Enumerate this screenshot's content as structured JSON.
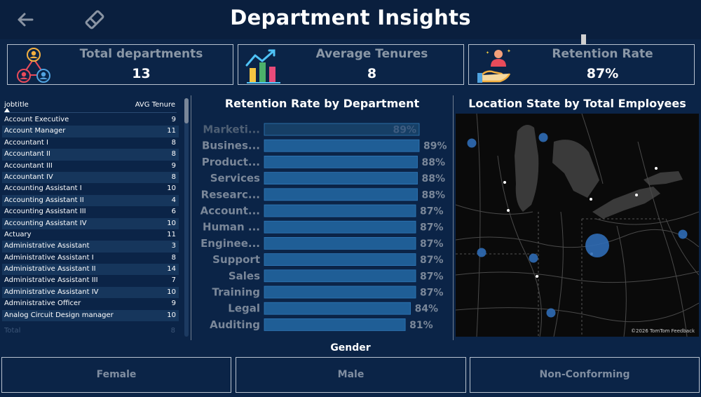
{
  "header": {
    "title": "Department Insights",
    "back_icon": "back-arrow-icon",
    "eraser_icon": "eraser-icon"
  },
  "kpis": [
    {
      "label": "Total departments",
      "value": "13",
      "icon": "org-chart-icon"
    },
    {
      "label": "Average Tenures",
      "value": "8",
      "icon": "bar-chart-growth-icon"
    },
    {
      "label": "Retention Rate",
      "value": "87%",
      "icon": "hand-person-icon"
    }
  ],
  "job_table": {
    "columns": [
      "jobtitle",
      "AVG Tenure"
    ],
    "rows": [
      {
        "job": "Account Executive",
        "avg": "9"
      },
      {
        "job": "Account Manager",
        "avg": "11"
      },
      {
        "job": "Accountant I",
        "avg": "8"
      },
      {
        "job": "Accountant II",
        "avg": "8"
      },
      {
        "job": "Accountant III",
        "avg": "9"
      },
      {
        "job": "Accountant IV",
        "avg": "8"
      },
      {
        "job": "Accounting Assistant I",
        "avg": "10"
      },
      {
        "job": "Accounting Assistant II",
        "avg": "4"
      },
      {
        "job": "Accounting Assistant III",
        "avg": "6"
      },
      {
        "job": "Accounting Assistant IV",
        "avg": "10"
      },
      {
        "job": "Actuary",
        "avg": "11"
      },
      {
        "job": "Administrative Assistant",
        "avg": "3"
      },
      {
        "job": "Administrative Assistant I",
        "avg": "8"
      },
      {
        "job": "Administrative Assistant II",
        "avg": "14"
      },
      {
        "job": "Administrative Assistant III",
        "avg": "7"
      },
      {
        "job": "Administrative Assistant IV",
        "avg": "10"
      },
      {
        "job": "Administrative Officer",
        "avg": "9"
      },
      {
        "job": "Analog Circuit Design manager",
        "avg": "10"
      }
    ],
    "total_label": "Total",
    "total_value": "8"
  },
  "retention_chart": {
    "title": "Retention Rate by Department"
  },
  "chart_data": {
    "type": "bar",
    "orientation": "horizontal",
    "title": "Retention Rate by Department",
    "categories": [
      "Marketi...",
      "Busines...",
      "Product...",
      "Services",
      "Researc...",
      "Account...",
      "Human ...",
      "Enginee...",
      "Support",
      "Sales",
      "Training",
      "Legal",
      "Auditing"
    ],
    "values": [
      89,
      89,
      88,
      88,
      88,
      87,
      87,
      87,
      87,
      87,
      87,
      84,
      81
    ],
    "value_labels": [
      "89%",
      "89%",
      "88%",
      "88%",
      "88%",
      "87%",
      "87%",
      "87%",
      "87%",
      "87%",
      "87%",
      "84%",
      "81%"
    ],
    "highlighted_index": 0,
    "xlim": [
      0,
      89
    ],
    "bar_color": "#1f5e96",
    "highlight_color": "#163f66",
    "grid": false
  },
  "map": {
    "title": "Location State by Total Employees",
    "credit": "©2026 TomTom Feedback",
    "bubbles": [
      {
        "size": "small"
      },
      {
        "size": "small"
      },
      {
        "size": "small"
      },
      {
        "size": "small"
      },
      {
        "size": "large"
      },
      {
        "size": "small"
      },
      {
        "size": "small"
      }
    ]
  },
  "gender": {
    "title": "Gender",
    "options": [
      "Female",
      "Male",
      "Non-Conforming"
    ]
  },
  "colors": {
    "background": "#0b2447",
    "header": "#0a1f3e",
    "bar": "#1f5e96",
    "bubble": "#2f6bb5"
  }
}
